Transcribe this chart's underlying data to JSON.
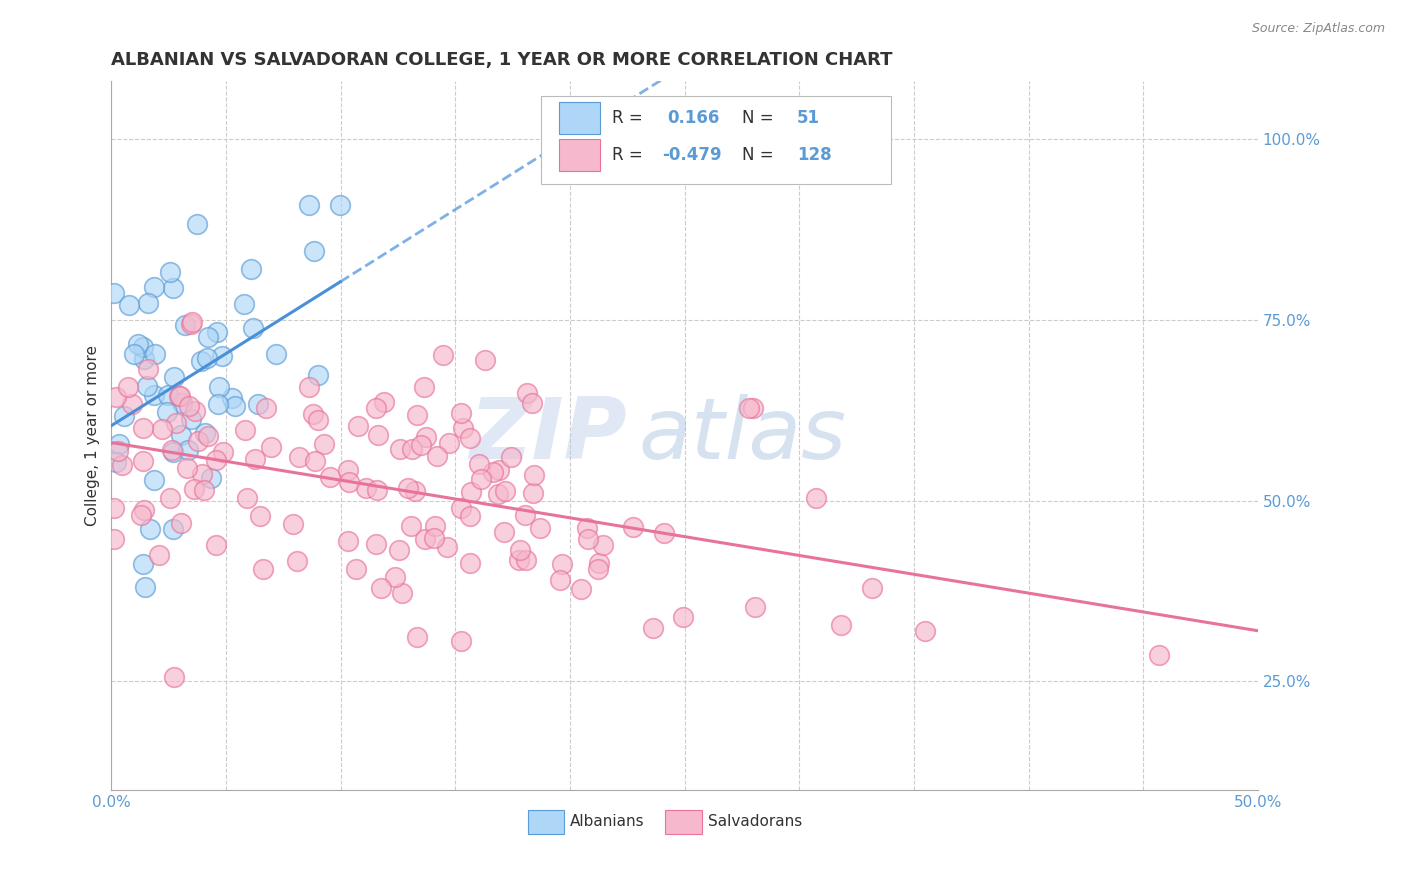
{
  "title": "ALBANIAN VS SALVADORAN COLLEGE, 1 YEAR OR MORE CORRELATION CHART",
  "source_text": "Source: ZipAtlas.com",
  "ylabel": "College, 1 year or more",
  "xlim": [
    0.0,
    0.5
  ],
  "ylim": [
    0.1,
    1.08
  ],
  "xticks": [
    0.0,
    0.05,
    0.1,
    0.15,
    0.2,
    0.25,
    0.3,
    0.35,
    0.4,
    0.45,
    0.5
  ],
  "yticks_right": [
    0.25,
    0.5,
    0.75,
    1.0
  ],
  "ytick_right_labels": [
    "25.0%",
    "50.0%",
    "75.0%",
    "100.0%"
  ],
  "albanian_color": "#AED6F7",
  "salvadoran_color": "#F5B8CC",
  "albanian_edge_color": "#5B9BD5",
  "salvadoran_edge_color": "#E8739A",
  "albanian_line_color": "#4A90D9",
  "salvadoran_line_color": "#E8739A",
  "grid_color": "#CCCCCC",
  "background_color": "#FFFFFF",
  "legend_R1": "0.166",
  "legend_N1": "51",
  "legend_R2": "-0.479",
  "legend_N2": "128",
  "albanian_R": 0.166,
  "albanian_N": 51,
  "salvadoran_R": -0.479,
  "salvadoran_N": 128,
  "watermark_zip": "ZIP",
  "watermark_atlas": "atlas",
  "title_fontsize": 13,
  "label_fontsize": 11,
  "tick_fontsize": 11,
  "legend_fontsize": 12
}
